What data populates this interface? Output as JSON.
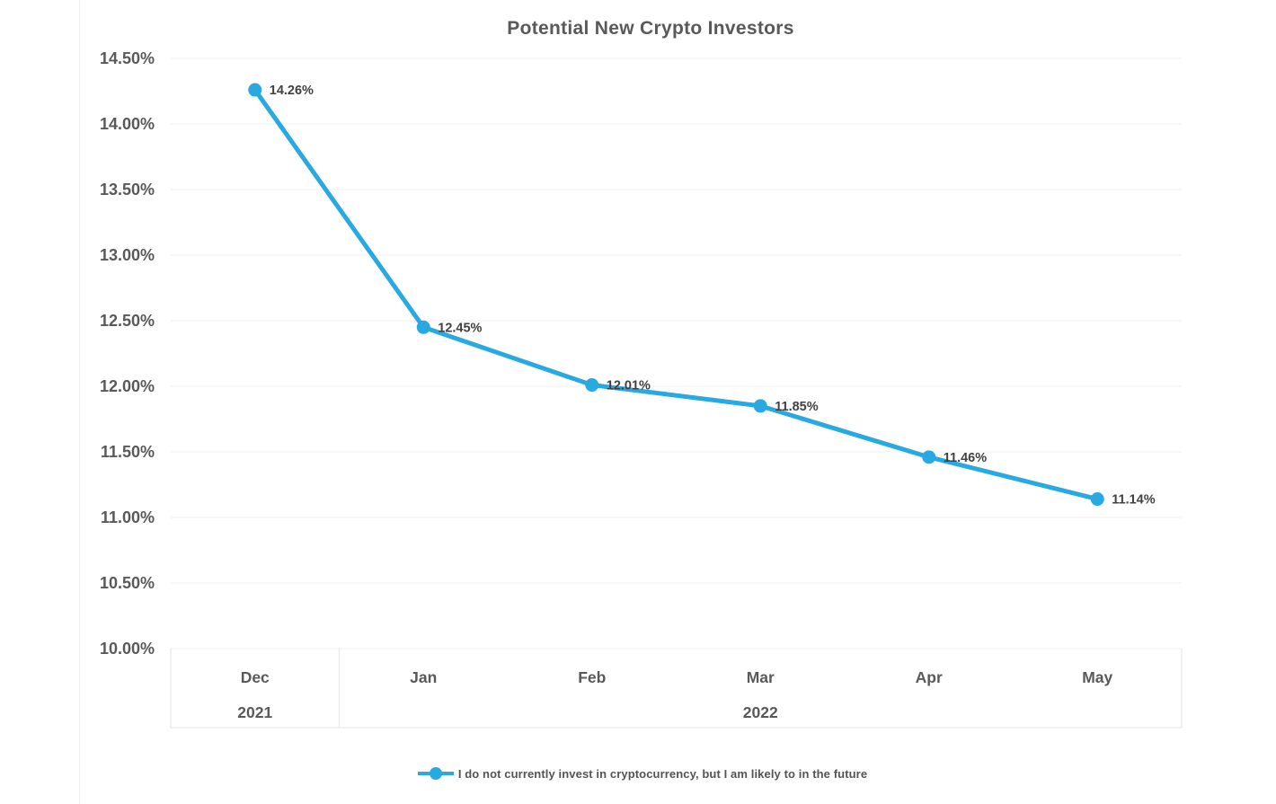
{
  "chart_data": {
    "type": "line",
    "title": "Potential New Crypto Investors",
    "categories": [
      "Dec",
      "Jan",
      "Feb",
      "Mar",
      "Apr",
      "May"
    ],
    "year_groups": [
      {
        "label": "2021",
        "from": 0,
        "to": 0
      },
      {
        "label": "2022",
        "from": 1,
        "to": 5
      }
    ],
    "series": [
      {
        "name": "I do not currently invest in cryptocurrency, but I am likely to in the future",
        "values": [
          14.26,
          12.45,
          12.01,
          11.85,
          11.46,
          11.14
        ],
        "point_labels": [
          "14.26%",
          "12.45%",
          "12.01%",
          "11.85%",
          "11.46%",
          "11.14%"
        ],
        "color": "#29A9E1"
      }
    ],
    "ylim": [
      10.0,
      14.5
    ],
    "ytick_labels": [
      "14.50%",
      "14.00%",
      "13.50%",
      "13.00%",
      "12.50%",
      "12.00%",
      "11.50%",
      "11.00%",
      "10.50%",
      "10.00%"
    ],
    "grid": "horizontal",
    "legend_position": "bottom",
    "xlabel": "",
    "ylabel": ""
  },
  "colors": {
    "accent": "#29A9E1",
    "axis_text": "#595959",
    "title_text": "#58595b",
    "point_label_text": "#414042",
    "gridline": "#f2f2f2",
    "band_border": "#e9e9e9",
    "card_border": "#f0f0f0"
  }
}
